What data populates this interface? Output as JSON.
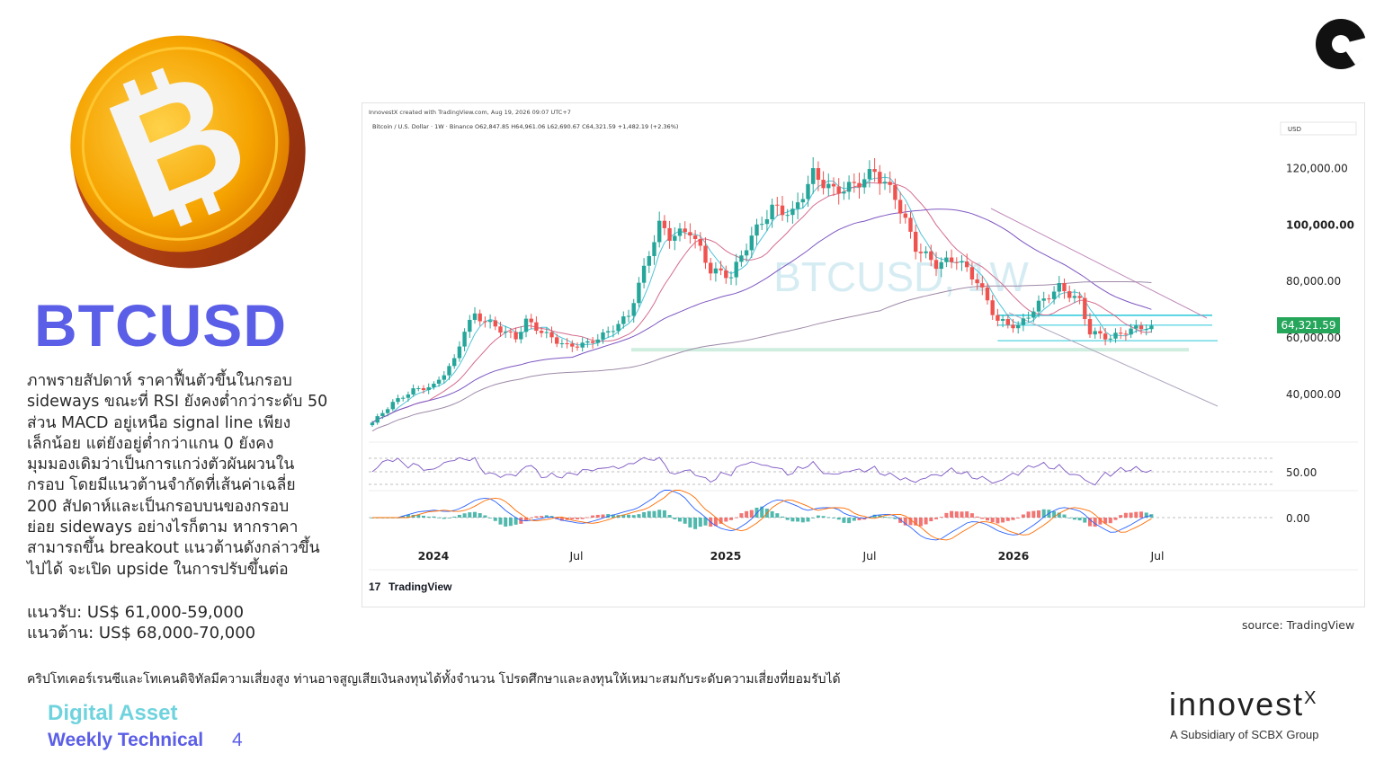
{
  "title": "BTCUSD",
  "description": [
    "ภาพรายสัปดาห์ ราคาฟื้นตัวขึ้นในกรอบ",
    "sideways ขณะที่ RSI ยังคงต่ำกว่าระดับ 50",
    "ส่วน MACD อยู่เหนือ signal line เพียง",
    "เล็กน้อย แต่ยังอยู่ต่ำกว่าแกน 0 ยังคง",
    "มุมมองเดิมว่าเป็นการแกว่งตัวผันผวนใน",
    "กรอบ โดยมีแนวต้านจำกัดที่เส้นค่าเฉลี่ย",
    "200 สัปดาห์และเป็นกรอบบนของกรอบ",
    "ย่อย sideways อย่างไรก็ตาม หากราคา",
    "สามารถขึ้น breakout แนวต้านดังกล่าวขึ้น",
    "ไปได้ จะเปิด upside ในการปรับขึ้นต่อ"
  ],
  "support": "แนวรับ: US$ 61,000-59,000",
  "resistance": "แนวต้าน: US$ 68,000-70,000",
  "disclaimer": "คริปโทเคอร์เรนซีและโทเคนดิจิทัลมีความเสี่ยงสูง ท่านอาจสูญเสียเงินลงทุนได้ทั้งจำนวน โปรดศึกษาและลงทุนให้เหมาะสมกับระดับความเสี่ยงที่ยอมรับได้",
  "footer": {
    "line1": "Digital Asset",
    "line2": "Weekly Technical",
    "page": "4"
  },
  "brand": {
    "name": "innovest",
    "x_mark": "X",
    "subtitle": "A Subsidiary of SCBX Group"
  },
  "source": "source: TradingView",
  "colors": {
    "title": "#5b5ee6",
    "footer1": "#6fd3de",
    "bull": "#26a69a",
    "bear": "#ef5350",
    "coin": "#f5a300"
  },
  "chart_data": {
    "type": "candlestick",
    "header_small": "InnovestX created with TradingView.com, Aug 19, 2026 09:07 UTC+7",
    "header_line": "Bitcoin / U.S. Dollar · 1W · Binance  O62,847.85  H64,961.06  L62,690.67  C64,321.59  +1,482.19 (+2.36%)",
    "watermark": "BTCUSD, 1W",
    "currency": "USD",
    "last_price": "64,321.59",
    "y_ticks": [
      "120,000.00",
      "100,000.00",
      "80,000.00",
      "60,000.00",
      "40,000.00"
    ],
    "y_tick_values": [
      120000,
      100000,
      80000,
      60000,
      40000
    ],
    "ylim": [
      25000,
      130000
    ],
    "x_ticks": [
      "2024",
      "Jul",
      "2025",
      "Jul",
      "2026",
      "Jul"
    ],
    "rsi_label": "50.00",
    "macd_label": "0.00",
    "attribution": "TradingView",
    "close_anchors": [
      [
        0,
        30000
      ],
      [
        4,
        37000
      ],
      [
        8,
        41500
      ],
      [
        12,
        43000
      ],
      [
        16,
        52000
      ],
      [
        18,
        63000
      ],
      [
        20,
        68000
      ],
      [
        24,
        64000
      ],
      [
        28,
        60000
      ],
      [
        30,
        66000
      ],
      [
        34,
        61000
      ],
      [
        38,
        57000
      ],
      [
        42,
        58000
      ],
      [
        46,
        62000
      ],
      [
        50,
        68000
      ],
      [
        54,
        90000
      ],
      [
        56,
        100000
      ],
      [
        58,
        96000
      ],
      [
        62,
        98000
      ],
      [
        66,
        84000
      ],
      [
        70,
        82000
      ],
      [
        74,
        96000
      ],
      [
        78,
        106000
      ],
      [
        82,
        104000
      ],
      [
        86,
        118000
      ],
      [
        90,
        112000
      ],
      [
        94,
        114000
      ],
      [
        98,
        119000
      ],
      [
        102,
        110000
      ],
      [
        106,
        92000
      ],
      [
        110,
        86000
      ],
      [
        114,
        88000
      ],
      [
        118,
        80000
      ],
      [
        122,
        66000
      ],
      [
        126,
        64000
      ],
      [
        130,
        72000
      ],
      [
        134,
        78000
      ],
      [
        138,
        73000
      ],
      [
        140,
        62000
      ],
      [
        144,
        60000
      ],
      [
        148,
        63000
      ],
      [
        152,
        64321
      ]
    ],
    "resistance_band": [
      68000,
      70000
    ],
    "support_band": [
      59000,
      61000
    ]
  }
}
